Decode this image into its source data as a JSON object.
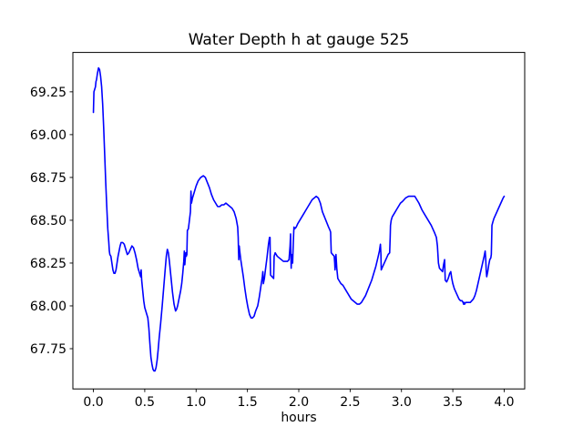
{
  "chart_data": {
    "type": "line",
    "title": "Water Depth h at gauge 525",
    "xlabel": "hours",
    "ylabel": "",
    "grid": false,
    "legend": false,
    "xlim": [
      -0.2,
      4.2
    ],
    "ylim": [
      67.515,
      69.48
    ],
    "xticks": {
      "values": [
        0.0,
        0.5,
        1.0,
        1.5,
        2.0,
        2.5,
        3.0,
        3.5,
        4.0
      ],
      "labels": [
        "0.0",
        "0.5",
        "1.0",
        "1.5",
        "2.0",
        "2.5",
        "3.0",
        "3.5",
        "4.0"
      ]
    },
    "yticks": {
      "values": [
        67.75,
        68.0,
        68.25,
        68.5,
        68.75,
        69.0,
        69.25
      ],
      "labels": [
        "67.75",
        "68.00",
        "68.25",
        "68.50",
        "68.75",
        "69.00",
        "69.25"
      ]
    },
    "colors": {
      "line": "#0000ff",
      "axes": "#000000",
      "text": "#000000",
      "background": "#ffffff"
    },
    "line_width": 1.6,
    "series": [
      {
        "x": [
          0.0,
          0.005,
          0.01,
          0.015,
          0.02,
          0.025,
          0.03,
          0.04,
          0.05,
          0.06,
          0.07,
          0.08,
          0.09,
          0.1,
          0.11,
          0.12,
          0.13,
          0.14,
          0.15,
          0.155,
          0.16,
          0.17,
          0.18,
          0.19,
          0.2,
          0.21,
          0.22,
          0.23,
          0.24,
          0.25,
          0.26,
          0.27,
          0.285,
          0.3,
          0.315,
          0.33,
          0.345,
          0.36,
          0.375,
          0.39,
          0.405,
          0.42,
          0.435,
          0.45,
          0.46,
          0.465,
          0.47,
          0.48,
          0.49,
          0.5,
          0.51,
          0.52,
          0.53,
          0.54,
          0.55,
          0.56,
          0.57,
          0.58,
          0.59,
          0.6,
          0.61,
          0.62,
          0.63,
          0.64,
          0.655,
          0.67,
          0.685,
          0.7,
          0.71,
          0.72,
          0.73,
          0.74,
          0.755,
          0.77,
          0.785,
          0.8,
          0.81,
          0.82,
          0.83,
          0.84,
          0.85,
          0.86,
          0.87,
          0.88,
          0.885,
          0.89,
          0.895,
          0.9,
          0.905,
          0.91,
          0.915,
          0.925,
          0.935,
          0.945,
          0.95,
          0.955,
          0.965,
          0.98,
          1.0,
          1.02,
          1.045,
          1.07,
          1.09,
          1.11,
          1.13,
          1.15,
          1.17,
          1.19,
          1.21,
          1.23,
          1.25,
          1.27,
          1.29,
          1.31,
          1.33,
          1.35,
          1.37,
          1.39,
          1.405,
          1.41,
          1.413,
          1.416,
          1.42,
          1.425,
          1.435,
          1.445,
          1.46,
          1.475,
          1.49,
          1.505,
          1.52,
          1.535,
          1.55,
          1.565,
          1.58,
          1.6,
          1.615,
          1.63,
          1.645,
          1.65,
          1.655,
          1.665,
          1.675,
          1.69,
          1.705,
          1.715,
          1.72,
          1.722,
          1.725,
          1.74,
          1.755,
          1.76,
          1.77,
          1.79,
          1.81,
          1.83,
          1.85,
          1.87,
          1.89,
          1.905,
          1.915,
          1.92,
          1.923,
          1.926,
          1.93,
          1.935,
          1.94,
          1.945,
          1.95,
          1.953,
          1.96,
          1.975,
          1.99,
          2.01,
          2.03,
          2.05,
          2.07,
          2.09,
          2.11,
          2.13,
          2.15,
          2.17,
          2.19,
          2.21,
          2.23,
          2.25,
          2.27,
          2.29,
          2.305,
          2.31,
          2.313,
          2.316,
          2.33,
          2.345,
          2.35,
          2.353,
          2.358,
          2.362,
          2.37,
          2.38,
          2.39,
          2.41,
          2.43,
          2.45,
          2.47,
          2.49,
          2.51,
          2.53,
          2.55,
          2.57,
          2.59,
          2.61,
          2.63,
          2.65,
          2.67,
          2.69,
          2.71,
          2.73,
          2.75,
          2.77,
          2.785,
          2.795,
          2.8,
          2.803,
          2.81,
          2.825,
          2.84,
          2.855,
          2.87,
          2.885,
          2.89,
          2.893,
          2.9,
          2.91,
          2.93,
          2.95,
          2.97,
          2.99,
          3.01,
          3.04,
          3.07,
          3.1,
          3.13,
          3.15,
          3.17,
          3.2,
          3.23,
          3.26,
          3.29,
          3.32,
          3.34,
          3.35,
          3.355,
          3.36,
          3.37,
          3.385,
          3.4,
          3.41,
          3.42,
          3.423,
          3.426,
          3.44,
          3.455,
          3.47,
          3.48,
          3.49,
          3.5,
          3.515,
          3.53,
          3.545,
          3.56,
          3.575,
          3.59,
          3.6,
          3.605,
          3.61,
          3.615,
          3.625,
          3.64,
          3.655,
          3.67,
          3.685,
          3.7,
          3.715,
          3.73,
          3.745,
          3.76,
          3.775,
          3.79,
          3.805,
          3.815,
          3.82,
          3.825,
          3.83,
          3.84,
          3.85,
          3.86,
          3.87,
          3.875,
          3.878,
          3.881,
          3.89,
          3.9,
          3.915,
          3.93,
          3.945,
          3.96,
          3.975,
          3.99,
          4.0
        ],
        "y": [
          69.13,
          69.25,
          69.26,
          69.27,
          69.28,
          69.31,
          69.32,
          69.36,
          69.39,
          69.38,
          69.34,
          69.28,
          69.18,
          69.04,
          68.88,
          68.72,
          68.58,
          68.45,
          68.37,
          68.32,
          68.3,
          68.29,
          68.25,
          68.21,
          68.19,
          68.19,
          68.21,
          68.25,
          68.29,
          68.32,
          68.35,
          68.37,
          68.37,
          68.36,
          68.33,
          68.3,
          68.31,
          68.33,
          68.35,
          68.34,
          68.31,
          68.27,
          68.22,
          68.19,
          68.17,
          68.21,
          68.15,
          68.09,
          68.03,
          67.99,
          67.97,
          67.95,
          67.93,
          67.87,
          67.78,
          67.7,
          67.66,
          67.63,
          67.62,
          67.62,
          67.64,
          67.68,
          67.74,
          67.81,
          67.9,
          68.0,
          68.11,
          68.22,
          68.29,
          68.33,
          68.31,
          68.26,
          68.17,
          68.08,
          68.01,
          67.97,
          67.98,
          68.0,
          68.03,
          68.06,
          68.09,
          68.13,
          68.19,
          68.26,
          68.32,
          68.24,
          68.28,
          68.31,
          68.29,
          68.3,
          68.44,
          68.45,
          68.5,
          68.55,
          68.67,
          68.6,
          68.63,
          68.66,
          68.7,
          68.73,
          68.75,
          68.76,
          68.75,
          68.72,
          68.69,
          68.65,
          68.62,
          68.6,
          68.58,
          68.58,
          68.59,
          68.59,
          68.6,
          68.59,
          68.58,
          68.57,
          68.55,
          68.51,
          68.46,
          68.4,
          68.32,
          68.27,
          68.35,
          68.32,
          68.27,
          68.23,
          68.17,
          68.1,
          68.04,
          67.99,
          67.95,
          67.93,
          67.93,
          67.94,
          67.97,
          68.0,
          68.05,
          68.11,
          68.17,
          68.2,
          68.13,
          68.16,
          68.21,
          68.28,
          68.36,
          68.4,
          68.4,
          68.28,
          68.18,
          68.17,
          68.16,
          68.29,
          68.31,
          68.29,
          68.28,
          68.27,
          68.26,
          68.26,
          68.26,
          68.27,
          68.35,
          68.42,
          68.3,
          68.22,
          68.3,
          68.26,
          68.25,
          68.34,
          68.42,
          68.46,
          68.45,
          68.46,
          68.48,
          68.5,
          68.52,
          68.54,
          68.56,
          68.58,
          68.6,
          68.62,
          68.63,
          68.64,
          68.63,
          68.6,
          68.55,
          68.52,
          68.49,
          68.46,
          68.44,
          68.43,
          68.37,
          68.31,
          68.3,
          68.29,
          68.25,
          68.21,
          68.26,
          68.3,
          68.22,
          68.16,
          68.15,
          68.13,
          68.12,
          68.1,
          68.08,
          68.06,
          68.04,
          68.03,
          68.02,
          68.01,
          68.01,
          68.02,
          68.04,
          68.06,
          68.09,
          68.12,
          68.15,
          68.19,
          68.23,
          68.28,
          68.32,
          68.36,
          68.3,
          68.21,
          68.22,
          68.24,
          68.26,
          68.28,
          68.3,
          68.31,
          68.4,
          68.47,
          68.5,
          68.52,
          68.54,
          68.56,
          68.58,
          68.6,
          68.61,
          68.63,
          68.64,
          68.64,
          68.64,
          68.62,
          68.6,
          68.56,
          68.53,
          68.5,
          68.47,
          68.43,
          68.4,
          68.35,
          68.3,
          68.25,
          68.22,
          68.21,
          68.2,
          68.24,
          68.27,
          68.21,
          68.15,
          68.14,
          68.16,
          68.19,
          68.2,
          68.16,
          68.13,
          68.1,
          68.08,
          68.06,
          68.04,
          68.03,
          68.03,
          68.02,
          68.01,
          68.02,
          68.01,
          68.02,
          68.02,
          68.02,
          68.02,
          68.03,
          68.04,
          68.06,
          68.09,
          68.13,
          68.17,
          68.21,
          68.25,
          68.29,
          68.32,
          68.28,
          68.21,
          68.17,
          68.2,
          68.24,
          68.27,
          68.28,
          68.3,
          68.38,
          68.47,
          68.49,
          68.51,
          68.53,
          68.55,
          68.57,
          68.59,
          68.61,
          68.63,
          68.64
        ]
      }
    ]
  }
}
